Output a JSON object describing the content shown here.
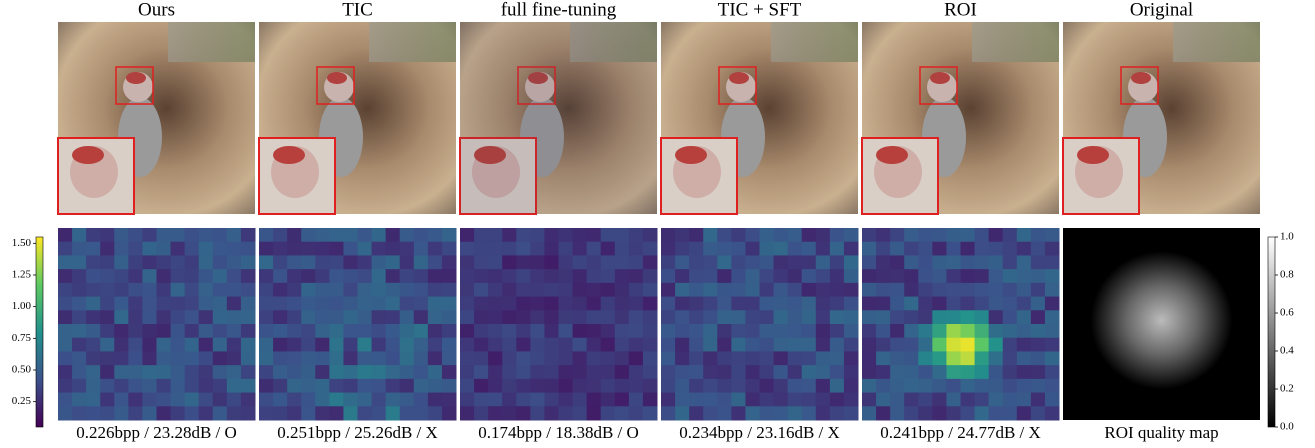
{
  "figure": {
    "columns": [
      {
        "title": "Ours",
        "caption": "0.226bpp / 23.28dB / O"
      },
      {
        "title": "TIC",
        "caption": "0.251bpp / 25.26dB / X"
      },
      {
        "title": "full fine-tuning",
        "caption": "0.174bpp / 18.38dB / O"
      },
      {
        "title": "TIC + SFT",
        "caption": "0.234bpp / 23.16dB / X"
      },
      {
        "title": "ROI",
        "caption": "0.241bpp / 24.77dB / X"
      },
      {
        "title": "Original",
        "caption": "ROI quality map"
      }
    ],
    "left_colorbar": {
      "colormap": "viridis",
      "range": [
        0.05,
        1.55
      ],
      "ticks": [
        {
          "value": 0.25,
          "label": "0.25"
        },
        {
          "value": 0.5,
          "label": "0.50"
        },
        {
          "value": 0.75,
          "label": "0.75"
        },
        {
          "value": 1.0,
          "label": "1.00"
        },
        {
          "value": 1.25,
          "label": "1.25"
        },
        {
          "value": 1.5,
          "label": "1.50"
        }
      ]
    },
    "right_colorbar": {
      "colormap": "gray",
      "range": [
        0,
        1
      ],
      "ticks": [
        {
          "value": 0,
          "label": "0.0"
        },
        {
          "value": 0.2,
          "label": "0.2"
        },
        {
          "value": 0.4,
          "label": "0.4"
        },
        {
          "value": 0.6,
          "label": "0.6"
        },
        {
          "value": 0.8,
          "label": "0.8"
        },
        {
          "value": 1,
          "label": "1.0"
        }
      ]
    }
  }
}
